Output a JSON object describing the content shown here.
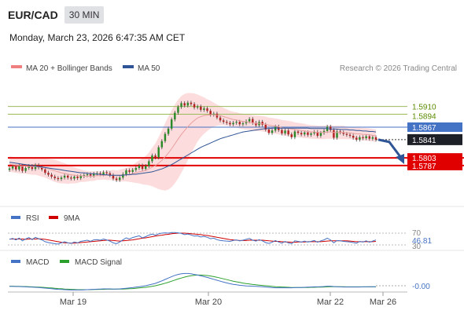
{
  "header": {
    "pair": "EUR/CAD",
    "timeframe": "30 MIN",
    "datetime": "Monday, March 23, 2026 6:47:35 AM CET"
  },
  "legend": {
    "bb_label": "MA 20 + Bollinger Bands",
    "ma50_label": "MA 50",
    "copyright": "Research © 2026 Trading Central",
    "bb_color": "#f08080",
    "ma50_color": "#2f5597"
  },
  "rsi_legend": {
    "rsi": "RSI",
    "ma": "9MA",
    "rsi_color": "#4472c4",
    "ma_color": "#d00000"
  },
  "macd_legend": {
    "macd": "MACD",
    "signal": "MACD Signal",
    "macd_color": "#4472c4",
    "signal_color": "#2ca02c"
  },
  "chart_data": [
    {
      "type": "candlestick",
      "title": "EUR/CAD",
      "ylim": [
        1.5715,
        1.5965
      ],
      "x_ticks": [
        "Mar 19",
        "Mar 20",
        "Mar 22",
        "Mar 26"
      ],
      "levels": [
        {
          "value": 1.591,
          "label": "1.5910",
          "color": "#9bbb59"
        },
        {
          "value": 1.5894,
          "label": "1.5894",
          "color": "#9bbb59"
        },
        {
          "value": 1.5867,
          "label": "1.5867",
          "color": "#4472c4"
        },
        {
          "value": 1.5803,
          "label": "1.5803",
          "color": "#e00000"
        },
        {
          "value": 1.5787,
          "label": "1.5787",
          "color": "#e00000"
        }
      ],
      "last_price": {
        "value": 1.5841,
        "label": "1.5841"
      },
      "close": [
        1.5781,
        1.5785,
        1.5779,
        1.5786,
        1.5776,
        1.5782,
        1.5786,
        1.578,
        1.5788,
        1.5783,
        1.5779,
        1.5772,
        1.5768,
        1.5764,
        1.5761,
        1.5759,
        1.5762,
        1.5766,
        1.5762,
        1.576,
        1.5764,
        1.5761,
        1.5765,
        1.5767,
        1.5769,
        1.5766,
        1.577,
        1.5771,
        1.5769,
        1.5773,
        1.5771,
        1.5767,
        1.576,
        1.5757,
        1.5762,
        1.5769,
        1.5777,
        1.5774,
        1.5778,
        1.5782,
        1.5787,
        1.578,
        1.5786,
        1.5796,
        1.5808,
        1.5804,
        1.5825,
        1.5838,
        1.5853,
        1.5864,
        1.5883,
        1.5897,
        1.5909,
        1.5917,
        1.5912,
        1.5918,
        1.5915,
        1.5908,
        1.591,
        1.5903,
        1.5906,
        1.5901,
        1.5893,
        1.5895,
        1.5887,
        1.5881,
        1.5878,
        1.5876,
        1.5873,
        1.5876,
        1.5878,
        1.5873,
        1.5875,
        1.5879,
        1.5884,
        1.5876,
        1.5871,
        1.5878,
        1.5872,
        1.5862,
        1.5855,
        1.586,
        1.5868,
        1.5861,
        1.5854,
        1.586,
        1.5852,
        1.5846,
        1.5858,
        1.5855,
        1.5852,
        1.5856,
        1.5851,
        1.5854,
        1.5857,
        1.5849,
        1.5855,
        1.5859,
        1.5868,
        1.5861,
        1.5845,
        1.5858,
        1.5856,
        1.5853,
        1.5851,
        1.5849,
        1.5845,
        1.5841,
        1.5846,
        1.5844,
        1.5848,
        1.5843,
        1.5846,
        1.5841
      ],
      "ma20": [
        1.579,
        1.5789,
        1.5788,
        1.5787,
        1.5786,
        1.5786,
        1.5785,
        1.5785,
        1.5785,
        1.5784,
        1.5783,
        1.5782,
        1.578,
        1.5778,
        1.5776,
        1.5774,
        1.5772,
        1.5771,
        1.5769,
        1.5768,
        1.5767,
        1.5766,
        1.5766,
        1.5765,
        1.5765,
        1.5765,
        1.5765,
        1.5766,
        1.5766,
        1.5767,
        1.5767,
        1.5767,
        1.5767,
        1.5766,
        1.5766,
        1.5767,
        1.5768,
        1.5769,
        1.577,
        1.5772,
        1.5774,
        1.5775,
        1.5777,
        1.578,
        1.5784,
        1.5787,
        1.5792,
        1.5798,
        1.5805,
        1.5813,
        1.5822,
        1.5832,
        1.5842,
        1.5852,
        1.586,
        1.5868,
        1.5875,
        1.5881,
        1.5886,
        1.5889,
        1.5891,
        1.5892,
        1.5893,
        1.5893,
        1.5892,
        1.5891,
        1.5889,
        1.5887,
        1.5885,
        1.5883,
        1.5882,
        1.588,
        1.5879,
        1.5878,
        1.5877,
        1.5876,
        1.5875,
        1.5875,
        1.5874,
        1.5873,
        1.5871,
        1.587,
        1.5869,
        1.5868,
        1.5866,
        1.5865,
        1.5864,
        1.5863,
        1.5862,
        1.5861,
        1.586,
        1.5859,
        1.5858,
        1.5857,
        1.5857,
        1.5856,
        1.5856,
        1.5856,
        1.5857,
        1.5857,
        1.5856,
        1.5856,
        1.5856,
        1.5856,
        1.5855,
        1.5855,
        1.5854,
        1.5853,
        1.5853,
        1.5852,
        1.5852,
        1.5851,
        1.585,
        1.5849
      ],
      "bb_width": [
        0.0016,
        0.0016,
        0.0016,
        0.0016,
        0.0016,
        0.0016,
        0.0016,
        0.0017,
        0.0017,
        0.0018,
        0.0019,
        0.002,
        0.0021,
        0.0022,
        0.0023,
        0.0023,
        0.0022,
        0.0021,
        0.002,
        0.0018,
        0.0017,
        0.0015,
        0.0013,
        0.0012,
        0.0011,
        0.001,
        0.001,
        0.0009,
        0.0009,
        0.0009,
        0.001,
        0.001,
        0.0011,
        0.0011,
        0.0012,
        0.0013,
        0.0014,
        0.0016,
        0.0018,
        0.0021,
        0.0024,
        0.0027,
        0.003,
        0.0034,
        0.004,
        0.0046,
        0.0054,
        0.0062,
        0.007,
        0.0076,
        0.008,
        0.0082,
        0.0082,
        0.008,
        0.0076,
        0.007,
        0.0063,
        0.0056,
        0.0049,
        0.0043,
        0.0038,
        0.0033,
        0.0029,
        0.0025,
        0.0022,
        0.002,
        0.0018,
        0.0017,
        0.0016,
        0.0016,
        0.0016,
        0.0016,
        0.0016,
        0.0016,
        0.0016,
        0.0016,
        0.0016,
        0.0016,
        0.0016,
        0.0016,
        0.0016,
        0.0016,
        0.0016,
        0.0016,
        0.0016,
        0.0016,
        0.0016,
        0.0016,
        0.0015,
        0.0015,
        0.0015,
        0.0015,
        0.0014,
        0.0014,
        0.0014,
        0.0014,
        0.0014,
        0.0014,
        0.0014,
        0.0014,
        0.0014,
        0.0014,
        0.0014,
        0.0014,
        0.0013,
        0.0013,
        0.0013,
        0.0013,
        0.0013,
        0.0013,
        0.0013,
        0.0013,
        0.0013,
        0.0013
      ],
      "ma50": [
        1.5794,
        1.5793,
        1.5792,
        1.5791,
        1.579,
        1.5789,
        1.5788,
        1.5787,
        1.5786,
        1.5785,
        1.5784,
        1.5783,
        1.5782,
        1.5781,
        1.578,
        1.5779,
        1.5778,
        1.5777,
        1.5776,
        1.5775,
        1.5774,
        1.5773,
        1.5772,
        1.5772,
        1.5771,
        1.577,
        1.577,
        1.5769,
        1.5769,
        1.5768,
        1.5768,
        1.5767,
        1.5767,
        1.5767,
        1.5767,
        1.5767,
        1.5768,
        1.5768,
        1.5769,
        1.5769,
        1.577,
        1.5771,
        1.5772,
        1.5773,
        1.5774,
        1.5776,
        1.5778,
        1.578,
        1.5783,
        1.5786,
        1.5789,
        1.5793,
        1.5797,
        1.5801,
        1.5805,
        1.5809,
        1.5813,
        1.5817,
        1.5821,
        1.5825,
        1.5828,
        1.5831,
        1.5834,
        1.5837,
        1.584,
        1.5843,
        1.5845,
        1.5847,
        1.5849,
        1.5851,
        1.5853,
        1.5855,
        1.5857,
        1.5858,
        1.5859,
        1.586,
        1.5861,
        1.5862,
        1.5863,
        1.5864,
        1.5864,
        1.5865,
        1.5865,
        1.5865,
        1.5865,
        1.5865,
        1.5865,
        1.5865,
        1.5865,
        1.5865,
        1.5865,
        1.5865,
        1.5865,
        1.5864,
        1.5864,
        1.5864,
        1.5864,
        1.5864,
        1.5864,
        1.5863,
        1.5863,
        1.5863,
        1.5862,
        1.5862,
        1.5862,
        1.5861,
        1.5861,
        1.586,
        1.586,
        1.5859,
        1.5859,
        1.5858,
        1.5858,
        1.5857
      ],
      "forecast_arrow": {
        "from": 1.5841,
        "to": 1.5795
      }
    },
    {
      "type": "line",
      "title": "RSI",
      "ylim": [
        30,
        70
      ],
      "y_ticks": [
        "70",
        "30"
      ],
      "last_value_label": "46.81",
      "rsi": [
        49,
        52,
        47,
        53,
        44,
        50,
        55,
        48,
        56,
        51,
        47,
        41,
        38,
        36,
        34,
        33,
        37,
        41,
        37,
        35,
        40,
        37,
        42,
        44,
        46,
        42,
        47,
        48,
        46,
        50,
        47,
        43,
        37,
        34,
        40,
        47,
        54,
        50,
        55,
        58,
        61,
        54,
        58,
        63,
        67,
        63,
        68,
        70,
        71,
        70,
        72,
        72,
        71,
        69,
        65,
        67,
        64,
        60,
        61,
        57,
        59,
        56,
        51,
        53,
        48,
        45,
        44,
        43,
        42,
        45,
        47,
        44,
        46,
        49,
        52,
        46,
        43,
        48,
        44,
        38,
        35,
        39,
        45,
        40,
        36,
        42,
        37,
        34,
        44,
        42,
        40,
        43,
        40,
        42,
        45,
        39,
        44,
        47,
        53,
        47,
        37,
        45,
        44,
        42,
        41,
        40,
        38,
        36,
        42,
        40,
        44,
        39,
        43,
        46.81
      ],
      "ma9": [
        50,
        50,
        50,
        50,
        50,
        49,
        50,
        50,
        50,
        51,
        50,
        49,
        47,
        45,
        43,
        41,
        39,
        37,
        37,
        36,
        36,
        37,
        38,
        39,
        40,
        41,
        42,
        43,
        44,
        45,
        46,
        46,
        45,
        44,
        43,
        44,
        45,
        46,
        47,
        49,
        51,
        53,
        54,
        56,
        58,
        60,
        62,
        63,
        65,
        66,
        68,
        69,
        70,
        70,
        70,
        69,
        68,
        67,
        66,
        65,
        63,
        62,
        60,
        58,
        56,
        54,
        52,
        50,
        48,
        47,
        46,
        45,
        45,
        45,
        46,
        46,
        46,
        46,
        46,
        45,
        44,
        43,
        42,
        42,
        41,
        40,
        40,
        39,
        39,
        40,
        40,
        40,
        41,
        41,
        41,
        41,
        41,
        42,
        43,
        44,
        44,
        44,
        44,
        44,
        44,
        43,
        42,
        41,
        41,
        41,
        41,
        41,
        41,
        42
      ]
    },
    {
      "type": "line",
      "title": "MACD",
      "last_value_label": "-0.00",
      "macd": [
        -0.4,
        -0.4,
        -0.5,
        -0.5,
        -0.6,
        -0.7,
        -0.8,
        -0.9,
        -1.0,
        -1.1,
        -1.3,
        -1.5,
        -1.7,
        -1.9,
        -2.1,
        -2.3,
        -2.4,
        -2.5,
        -2.6,
        -2.7,
        -2.7,
        -2.7,
        -2.7,
        -2.6,
        -2.5,
        -2.4,
        -2.3,
        -2.2,
        -2.1,
        -2.0,
        -2.0,
        -2.0,
        -2.1,
        -2.1,
        -2.0,
        -1.8,
        -1.6,
        -1.4,
        -1.2,
        -0.9,
        -0.6,
        -0.3,
        0.0,
        0.5,
        1.0,
        1.5,
        2.3,
        3.1,
        4.0,
        4.9,
        5.8,
        6.6,
        7.2,
        7.6,
        7.8,
        7.8,
        7.6,
        7.2,
        6.8,
        6.3,
        5.8,
        5.3,
        4.7,
        4.1,
        3.5,
        2.9,
        2.3,
        1.8,
        1.3,
        0.9,
        0.6,
        0.3,
        0.1,
        -0.1,
        -0.2,
        -0.3,
        -0.4,
        -0.5,
        -0.6,
        -0.8,
        -1.0,
        -1.2,
        -1.3,
        -1.3,
        -1.3,
        -1.3,
        -1.3,
        -1.3,
        -1.2,
        -1.1,
        -1.1,
        -1.0,
        -0.9,
        -0.8,
        -0.7,
        -0.7,
        -0.6,
        -0.5,
        -0.3,
        -0.3,
        -0.5,
        -0.6,
        -0.7,
        -0.8,
        -0.8,
        -0.8,
        -0.8,
        -0.8,
        -0.8,
        -0.7,
        -0.7,
        -0.6,
        -0.6,
        -0.6
      ],
      "signal": [
        -0.3,
        -0.3,
        -0.4,
        -0.4,
        -0.5,
        -0.5,
        -0.6,
        -0.7,
        -0.8,
        -0.9,
        -1.0,
        -1.1,
        -1.3,
        -1.4,
        -1.6,
        -1.8,
        -1.9,
        -2.1,
        -2.2,
        -2.3,
        -2.4,
        -2.5,
        -2.5,
        -2.5,
        -2.5,
        -2.5,
        -2.4,
        -2.4,
        -2.3,
        -2.3,
        -2.2,
        -2.2,
        -2.2,
        -2.1,
        -2.1,
        -2.1,
        -2.0,
        -1.9,
        -1.8,
        -1.6,
        -1.4,
        -1.2,
        -1.0,
        -0.7,
        -0.4,
        0.0,
        0.5,
        1.0,
        1.6,
        2.2,
        2.9,
        3.6,
        4.3,
        4.9,
        5.5,
        6.0,
        6.4,
        6.6,
        6.8,
        6.8,
        6.7,
        6.5,
        6.2,
        5.8,
        5.4,
        4.9,
        4.4,
        3.9,
        3.4,
        2.9,
        2.5,
        2.1,
        1.7,
        1.4,
        1.1,
        0.8,
        0.6,
        0.4,
        0.2,
        0.0,
        -0.2,
        -0.4,
        -0.6,
        -0.7,
        -0.8,
        -0.9,
        -1.0,
        -1.1,
        -1.1,
        -1.1,
        -1.1,
        -1.1,
        -1.1,
        -1.0,
        -1.0,
        -0.9,
        -0.9,
        -0.8,
        -0.7,
        -0.6,
        -0.6,
        -0.6,
        -0.6,
        -0.6,
        -0.7,
        -0.7,
        -0.7,
        -0.7,
        -0.7,
        -0.7,
        -0.7,
        -0.7,
        -0.7,
        -0.7
      ]
    }
  ]
}
